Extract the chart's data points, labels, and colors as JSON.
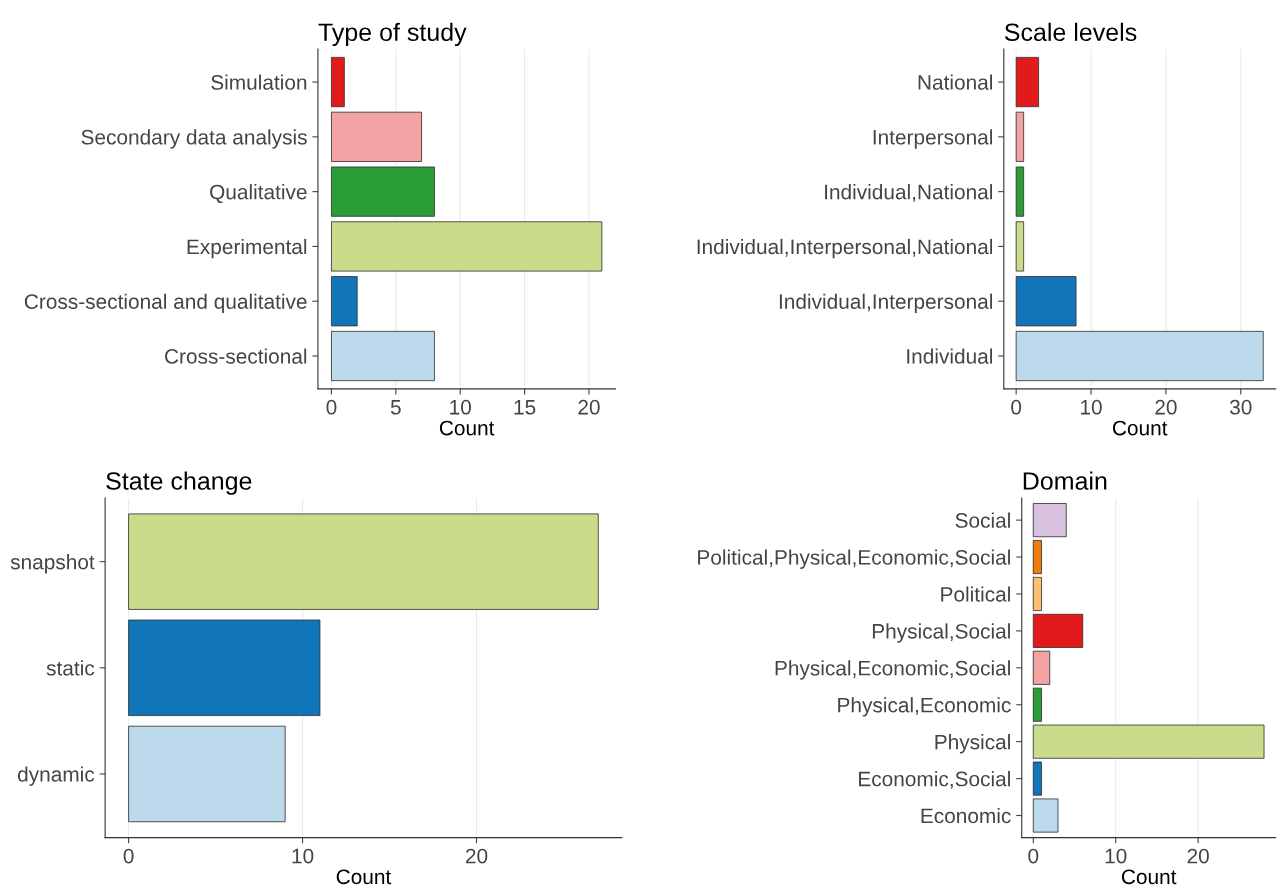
{
  "chart_data": [
    {
      "type": "bar",
      "orientation": "horizontal",
      "title": "Type of study",
      "xlabel": "Count",
      "categories": [
        "Simulation",
        "Secondary data analysis",
        "Qualitative",
        "Experimental",
        "Cross-sectional and qualitative",
        "Cross-sectional"
      ],
      "values": [
        1,
        7,
        8,
        21,
        2,
        8
      ],
      "colors": [
        "#e31a1c",
        "#f4a3a4",
        "#2a9d34",
        "#c8dc8c",
        "#1075b9",
        "#bcdaeb"
      ],
      "xlim": [
        -1.05,
        22.05
      ],
      "xticks": [
        0,
        5,
        10,
        15,
        20
      ],
      "grid": "x"
    },
    {
      "type": "bar",
      "orientation": "horizontal",
      "title": "Scale levels",
      "xlabel": "Count",
      "categories": [
        "National",
        "Interpersonal",
        "Individual,National",
        "Individual,Interpersonal,National",
        "Individual,Interpersonal",
        "Individual"
      ],
      "values": [
        3,
        1,
        1,
        1,
        8,
        33
      ],
      "colors": [
        "#e31a1c",
        "#f4a3a4",
        "#2a9d34",
        "#c8dc8c",
        "#1075b9",
        "#bcdaeb"
      ],
      "xlim": [
        -1.65,
        34.65
      ],
      "xticks": [
        0,
        10,
        20,
        30
      ],
      "grid": "x"
    },
    {
      "type": "bar",
      "orientation": "horizontal",
      "title": "State change",
      "xlabel": "Count",
      "categories": [
        "snapshot",
        "static",
        "dynamic"
      ],
      "values": [
        27,
        11,
        9
      ],
      "colors": [
        "#c8dc8c",
        "#1075b9",
        "#bcdaeb"
      ],
      "xlim": [
        -1.35,
        28.35
      ],
      "xticks": [
        0,
        10,
        20
      ],
      "grid": "x"
    },
    {
      "type": "bar",
      "orientation": "horizontal",
      "title": "Domain",
      "xlabel": "Count",
      "categories": [
        "Social",
        "Political,Physical,Economic,Social",
        "Political",
        "Physical,Social",
        "Physical,Economic,Social",
        "Physical,Economic",
        "Physical",
        "Economic,Social",
        "Economic"
      ],
      "values": [
        4,
        1,
        1,
        6,
        2,
        1,
        28,
        1,
        3
      ],
      "colors": [
        "#d8c2e0",
        "#ef7d0d",
        "#fdc06f",
        "#e31a1c",
        "#f4a3a4",
        "#2a9d34",
        "#c8dc8c",
        "#1075b9",
        "#bcdaeb"
      ],
      "xlim": [
        -1.4,
        29.4
      ],
      "xticks": [
        0,
        10,
        20
      ],
      "grid": "x"
    }
  ]
}
